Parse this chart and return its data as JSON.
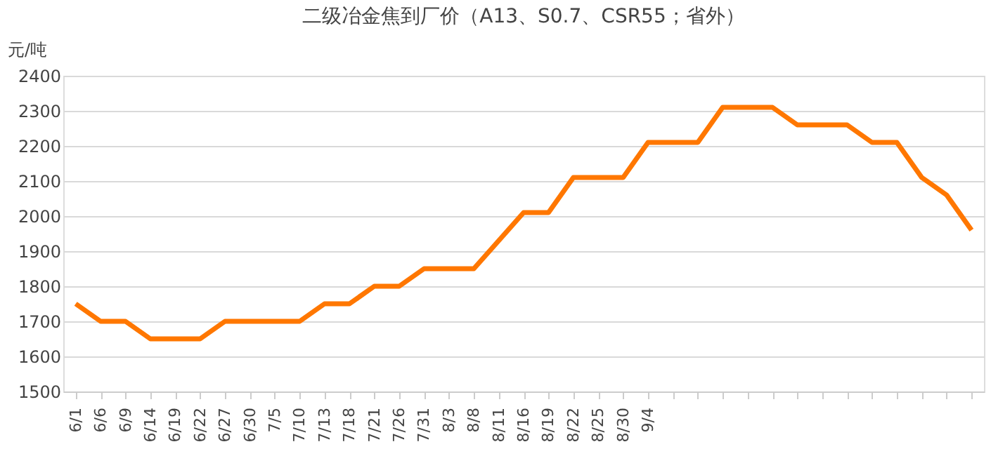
{
  "chart_data": {
    "type": "line",
    "title": "二级冶金焦到厂价（A13、S0.7、CSR55；省外）",
    "ylabel": "元/吨",
    "categories": [
      "6/1",
      "6/6",
      "6/9",
      "6/14",
      "6/19",
      "6/22",
      "6/27",
      "6/30",
      "7/5",
      "7/10",
      "7/13",
      "7/18",
      "7/21",
      "7/26",
      "7/31",
      "8/3",
      "8/8",
      "8/11",
      "8/16",
      "8/19",
      "8/22",
      "8/25",
      "8/30",
      "9/4",
      null,
      null,
      null,
      null,
      null,
      null,
      null,
      null,
      null,
      null,
      null,
      null,
      null
    ],
    "series": [
      {
        "color": "#ff7700",
        "values": [
          1750,
          1700,
          1700,
          1650,
          1650,
          1650,
          1700,
          1700,
          1700,
          1700,
          1750,
          1750,
          1800,
          1800,
          1850,
          1850,
          1850,
          1930,
          2010,
          2010,
          2110,
          2110,
          2110,
          2210,
          2210,
          2210,
          2310,
          2310,
          2310,
          2260,
          2260,
          2260,
          2210,
          2210,
          2110,
          2060,
          1960
        ]
      }
    ],
    "ylim": [
      1500,
      2400
    ],
    "yticks": [
      1500,
      1600,
      1700,
      1800,
      1900,
      2000,
      2100,
      2200,
      2300,
      2400
    ],
    "grid": "y",
    "marker": "none",
    "line_style": "solid"
  }
}
